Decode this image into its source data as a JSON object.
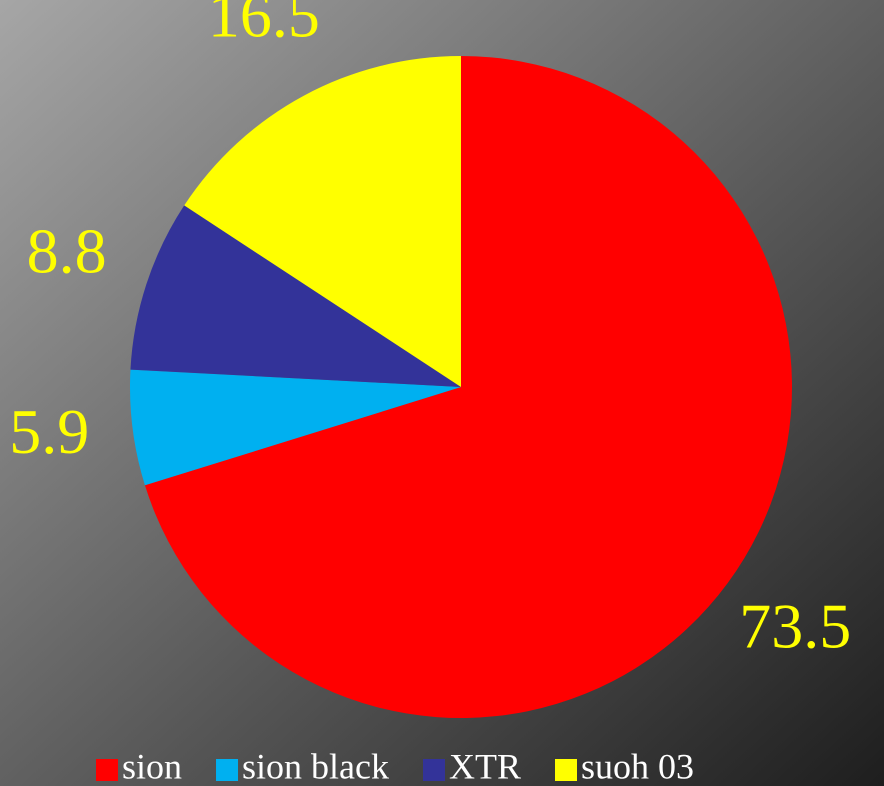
{
  "chart_data": {
    "type": "pie",
    "categories": [
      "sion",
      "sion black",
      "XTR",
      "suoh 03"
    ],
    "values": [
      73.5,
      5.9,
      8.8,
      16.5
    ],
    "colors": [
      "#ff0000",
      "#00b0f0",
      "#333399",
      "#ffff00"
    ],
    "label_color": "#ffff00",
    "legend": "bottom"
  }
}
